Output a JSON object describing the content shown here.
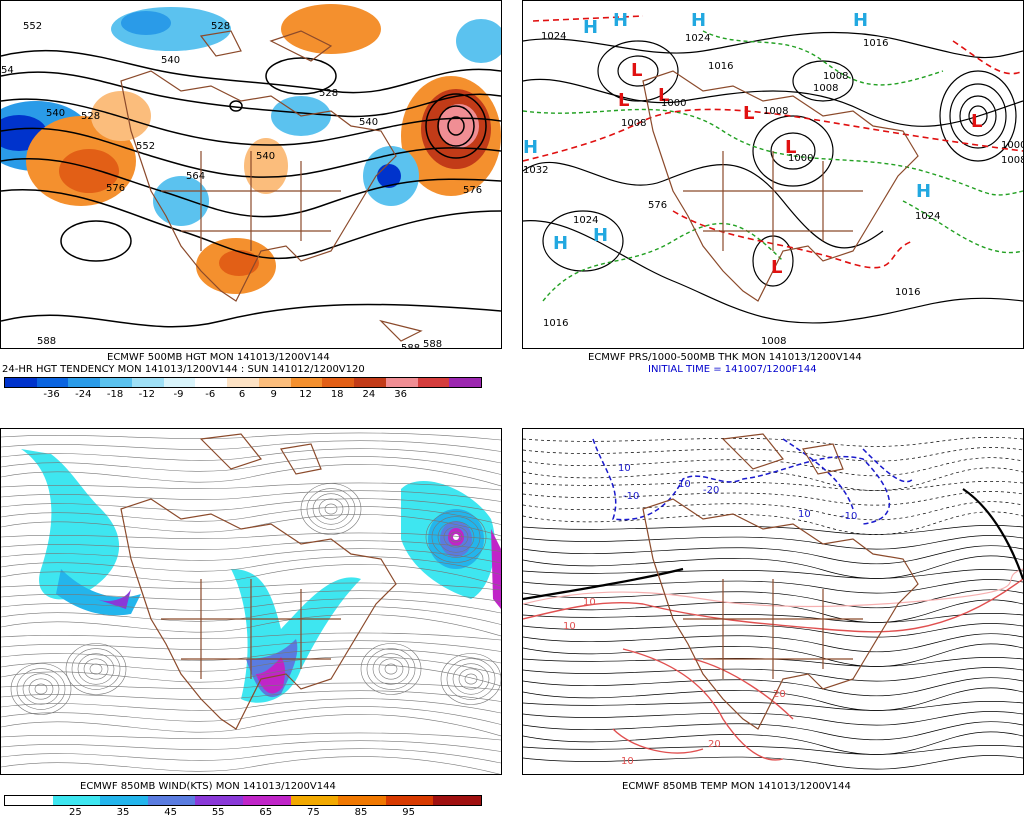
{
  "panels": {
    "p1": {
      "caption_line1": "ECMWF 500MB HGT MON 141013/1200V144",
      "caption_line2": "24-HR HGT TENDENCY MON 141013/1200V144 : SUN 141012/1200V120",
      "contour_labels": [
        "552",
        "528",
        "540",
        "528",
        "552",
        "540",
        "564",
        "576",
        "576",
        "528",
        "588",
        "588",
        "588",
        "54",
        "540",
        "540"
      ],
      "colorbar": {
        "ticks": [
          "-36",
          "-24",
          "-18",
          "-12",
          "-9",
          "-6",
          "6",
          "9",
          "12",
          "18",
          "24",
          "36"
        ],
        "colors": [
          "#0033cc",
          "#0a64e0",
          "#2a9be8",
          "#5bc2ef",
          "#9fe0f6",
          "#d9f4fb",
          "#ffffff",
          "#fde2c4",
          "#fbbd7c",
          "#f4902e",
          "#e25f16",
          "#c23b18",
          "#f08e94",
          "#d53d3d",
          "#9c27b0"
        ]
      }
    },
    "p2": {
      "caption_line1": "ECMWF PRS/1000-500MB THK MON 141013/1200V144",
      "caption_line2": "INITIAL TIME = 141007/1200F144",
      "pressure_labels": [
        "1024",
        "1024",
        "1016",
        "1008",
        "1000",
        "1008",
        "1032",
        "1016",
        "1008",
        "1024",
        "1016",
        "1000",
        "1008",
        "1000",
        "1024",
        "1016",
        "1008",
        "1008",
        "576"
      ],
      "high_symbol": "H",
      "low_symbol": "L"
    },
    "p3": {
      "caption": "ECMWF 850MB WIND(KTS) MON 141013/1200V144",
      "colorbar": {
        "ticks": [
          "25",
          "35",
          "45",
          "55",
          "65",
          "75",
          "85",
          "95"
        ],
        "colors": [
          "#ffffff",
          "#3ee6f0",
          "#23b5ec",
          "#5a7ce0",
          "#8a39d8",
          "#c025c8",
          "#f2a900",
          "#f07800",
          "#d83a00",
          "#a01010"
        ]
      }
    },
    "p4": {
      "caption": "ECMWF 850MB TEMP MON 141013/1200V144",
      "temp_labels": [
        "10",
        "10",
        "10",
        "-10",
        "-20",
        "-10",
        "10",
        "20",
        "10",
        "20",
        "10"
      ]
    }
  },
  "colors": {
    "borders": "#8b4a2b",
    "contour": "#000000",
    "dashed_green": "#22a022",
    "dashed_red": "#e01010",
    "high": "#22a8e0",
    "low": "#e01010",
    "cold": "#1a1acc",
    "warm": "#e05050"
  }
}
